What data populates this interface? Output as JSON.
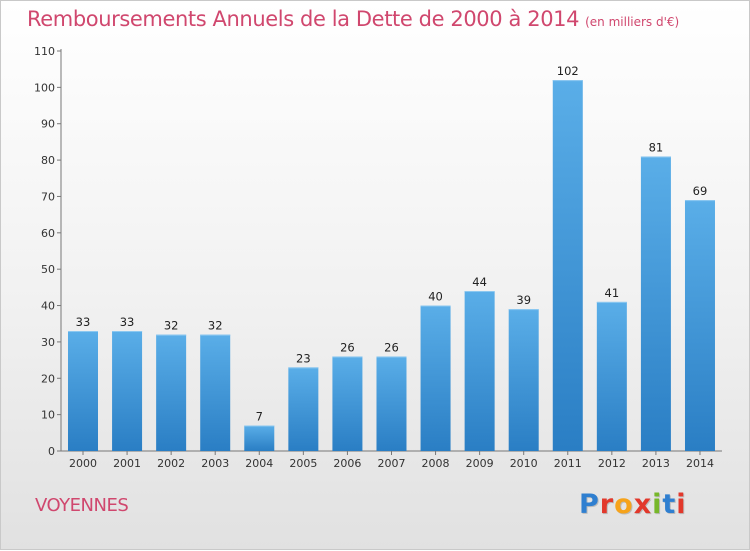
{
  "header": {
    "title": "Remboursements Annuels de la Dette de 2000 à 2014",
    "subtitle": "(en milliers d'€)"
  },
  "footer": {
    "town": "VOYENNES",
    "logo_text": "Proxiti",
    "logo_colors": [
      "#2f7fd0",
      "#e2382b",
      "#f6a31b",
      "#e2382b",
      "#77b72a",
      "#2f7fd0",
      "#e2382b"
    ]
  },
  "chart_data": {
    "type": "bar",
    "title": "Remboursements Annuels de la Dette de 2000 à 2014",
    "subtitle": "(en milliers d'€)",
    "categories": [
      "2000",
      "2001",
      "2002",
      "2003",
      "2004",
      "2005",
      "2006",
      "2007",
      "2008",
      "2009",
      "2010",
      "2011",
      "2012",
      "2013",
      "2014"
    ],
    "values": [
      33,
      33,
      32,
      32,
      7,
      23,
      26,
      26,
      40,
      44,
      39,
      102,
      41,
      81,
      69
    ],
    "ylim": [
      0,
      110
    ],
    "yticks": [
      0,
      10,
      20,
      30,
      40,
      50,
      60,
      70,
      80,
      90,
      100,
      110
    ],
    "xlabel": "",
    "ylabel": "",
    "bar_color_top": "#5aaee8",
    "bar_color_bottom": "#2a7ec4",
    "grid": false
  }
}
